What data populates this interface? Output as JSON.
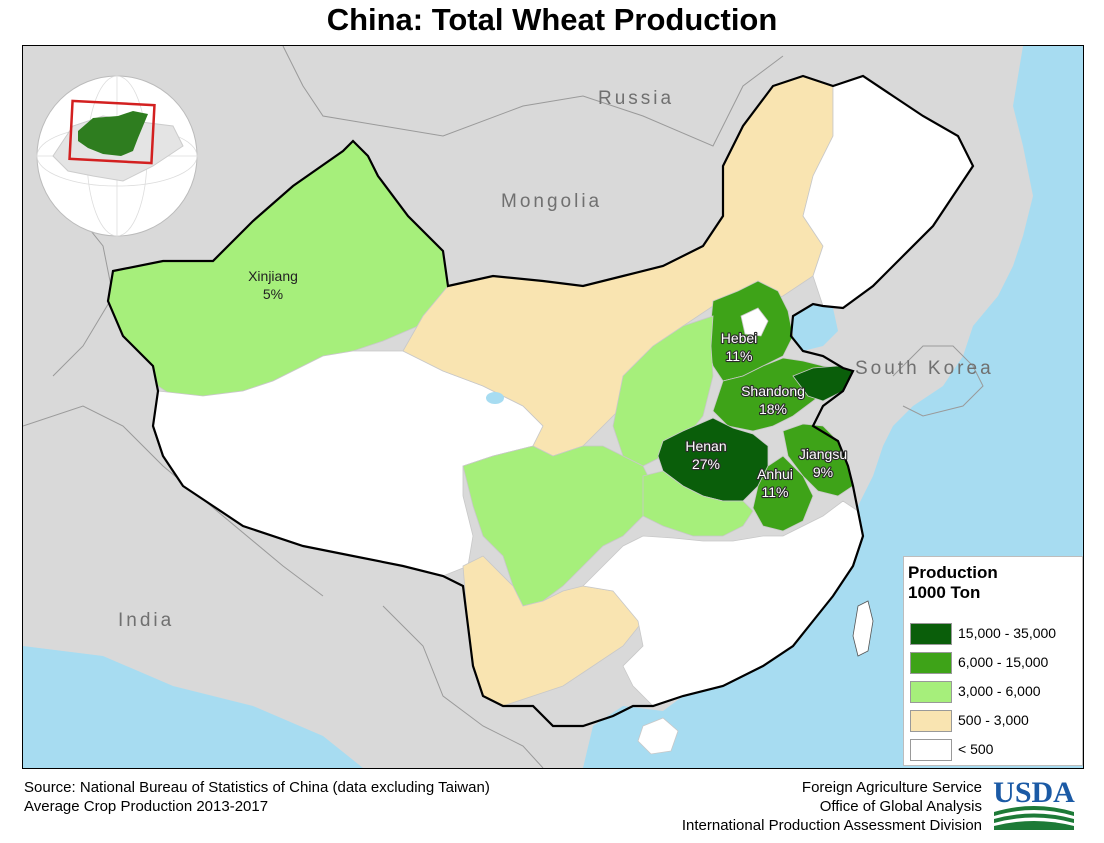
{
  "title": "China: Total Wheat Production",
  "map": {
    "country_labels": [
      "Russia",
      "Mongolia",
      "South Korea",
      "India"
    ],
    "provinces": [
      {
        "name": "Xinjiang",
        "share": "5%"
      },
      {
        "name": "Hebei",
        "share": "11%"
      },
      {
        "name": "Shandong",
        "share": "18%"
      },
      {
        "name": "Henan",
        "share": "27%"
      },
      {
        "name": "Jiangsu",
        "share": "9%"
      },
      {
        "name": "Anhui",
        "share": "11%"
      }
    ]
  },
  "legend": {
    "title_line1": "Production",
    "title_line2": "1000 Ton",
    "classes": [
      {
        "label": "15,000  - 35,000",
        "color": "#0a5e0a"
      },
      {
        "label": "6,000 - 15,000",
        "color": "#3ea318"
      },
      {
        "label": "3,000 - 6,000",
        "color": "#a6ef7b"
      },
      {
        "label": "500 - 3,000",
        "color": "#f9e4b1"
      },
      {
        "label": "< 500",
        "color": "#ffffff"
      }
    ]
  },
  "footer": {
    "source_line1": "Source: National Bureau of Statistics of China (data excluding Taiwan)",
    "source_line2": "Average Crop Production 2013-2017",
    "agency_line1": "Foreign Agriculture Service",
    "agency_line2": "Office of Global Analysis",
    "agency_line3": "International Production Assessment Division",
    "logo_text": "USDA"
  },
  "colors": {
    "ocean": "#a7dcf1",
    "land_other": "#d9d9d9",
    "china_outline": "#000000",
    "usda_blue": "#1b5aa5",
    "usda_green": "#1d7a37"
  }
}
